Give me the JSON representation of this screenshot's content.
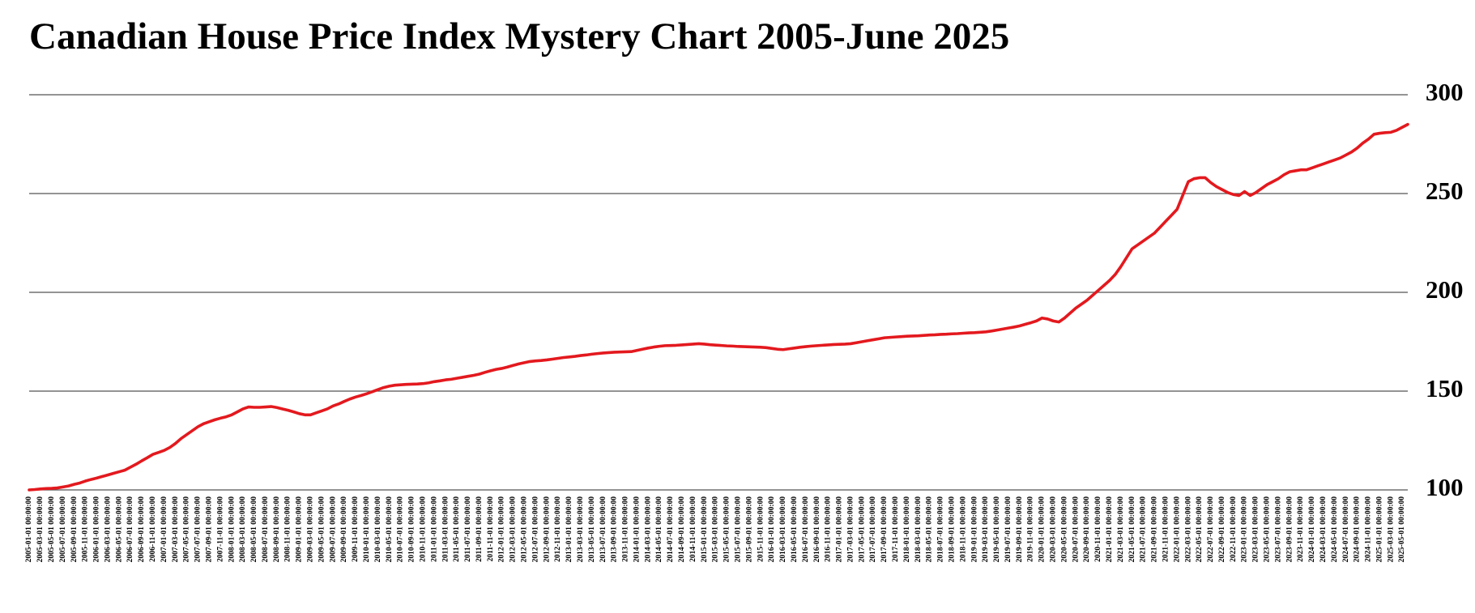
{
  "chart_data": {
    "type": "line",
    "title": "Canadian House Price Index Mystery Chart 2005-June 2025",
    "color": "#e3191e",
    "ylim": [
      100,
      300
    ],
    "yticks": [
      100,
      150,
      200,
      250,
      300
    ],
    "grid": true,
    "categories": [
      "2005-01-01 00:00:00",
      null,
      "2005-03-01 00:00:00",
      null,
      "2005-05-01 00:00:00",
      null,
      "2005-07-01 00:00:00",
      null,
      "2005-09-01 00:00:00",
      null,
      "2005-11-01 00:00:00",
      null,
      "2006-01-01 00:00:00",
      null,
      "2006-03-01 00:00:00",
      null,
      "2006-05-01 00:00:00",
      null,
      "2006-07-01 00:00:00",
      null,
      "2006-09-01 00:00:00",
      null,
      "2006-11-01 00:00:00",
      null,
      "2007-01-01 00:00:00",
      null,
      "2007-03-01 00:00:00",
      null,
      "2007-05-01 00:00:00",
      null,
      "2007-07-01 00:00:00",
      null,
      "2007-09-01 00:00:00",
      null,
      "2007-11-01 00:00:00",
      null,
      "2008-01-01 00:00:00",
      null,
      "2008-03-01 00:00:00",
      null,
      "2008-05-01 00:00:00",
      null,
      "2008-07-01 00:00:00",
      null,
      "2008-09-01 00:00:00",
      null,
      "2008-11-01 00:00:00",
      null,
      "2009-01-01 00:00:00",
      null,
      "2009-03-01 00:00:00",
      null,
      "2009-05-01 00:00:00",
      null,
      "2009-07-01 00:00:00",
      null,
      "2009-09-01 00:00:00",
      null,
      "2009-11-01 00:00:00",
      null,
      "2010-01-01 00:00:00",
      null,
      "2010-03-01 00:00:00",
      null,
      "2010-05-01 00:00:00",
      null,
      "2010-07-01 00:00:00",
      null,
      "2010-09-01 00:00:00",
      null,
      "2010-11-01 00:00:00",
      null,
      "2011-01-01 00:00:00",
      null,
      "2011-03-01 00:00:00",
      null,
      "2011-05-01 00:00:00",
      null,
      "2011-07-01 00:00:00",
      null,
      "2011-09-01 00:00:00",
      null,
      "2011-11-01 00:00:00",
      null,
      "2012-01-01 00:00:00",
      null,
      "2012-03-01 00:00:00",
      null,
      "2012-05-01 00:00:00",
      null,
      "2012-07-01 00:00:00",
      null,
      "2012-09-01 00:00:00",
      null,
      "2012-11-01 00:00:00",
      null,
      "2013-01-01 00:00:00",
      null,
      "2013-03-01 00:00:00",
      null,
      "2013-05-01 00:00:00",
      null,
      "2013-07-01 00:00:00",
      null,
      "2013-09-01 00:00:00",
      null,
      "2013-11-01 00:00:00",
      null,
      "2014-01-01 00:00:00",
      null,
      "2014-03-01 00:00:00",
      null,
      "2014-05-01 00:00:00",
      null,
      "2014-07-01 00:00:00",
      null,
      "2014-09-01 00:00:00",
      null,
      "2014-11-01 00:00:00",
      null,
      "2015-01-01 00:00:00",
      null,
      "2015-03-01 00:00:00",
      null,
      "2015-05-01 00:00:00",
      null,
      "2015-07-01 00:00:00",
      null,
      "2015-09-01 00:00:00",
      null,
      "2015-11-01 00:00:00",
      null,
      "2016-01-01 00:00:00",
      null,
      "2016-03-01 00:00:00",
      null,
      "2016-05-01 00:00:00",
      null,
      "2016-07-01 00:00:00",
      null,
      "2016-09-01 00:00:00",
      null,
      "2016-11-01 00:00:00",
      null,
      "2017-01-01 00:00:00",
      null,
      "2017-03-01 00:00:00",
      null,
      "2017-05-01 00:00:00",
      null,
      "2017-07-01 00:00:00",
      null,
      "2017-09-01 00:00:00",
      null,
      "2017-11-01 00:00:00",
      null,
      "2018-01-01 00:00:00",
      null,
      "2018-03-01 00:00:00",
      null,
      "2018-05-01 00:00:00",
      null,
      "2018-07-01 00:00:00",
      null,
      "2018-09-01 00:00:00",
      null,
      "2018-11-01 00:00:00",
      null,
      "2019-01-01 00:00:00",
      null,
      "2019-03-01 00:00:00",
      null,
      "2019-05-01 00:00:00",
      null,
      "2019-07-01 00:00:00",
      null,
      "2019-09-01 00:00:00",
      null,
      "2019-11-01 00:00:00",
      null,
      "2020-01-01 00:00:00",
      null,
      "2020-03-01 00:00:00",
      null,
      "2020-05-01 00:00:00",
      null,
      "2020-07-01 00:00:00",
      null,
      "2020-09-01 00:00:00",
      null,
      "2020-11-01 00:00:00",
      null,
      "2021-01-01 00:00:00",
      null,
      "2021-03-01 00:00:00",
      null,
      "2021-05-01 00:00:00",
      null,
      "2021-07-01 00:00:00",
      null,
      "2021-09-01 00:00:00",
      null,
      "2021-11-01 00:00:00",
      null,
      "2022-01-01 00:00:00",
      null,
      "2022-03-01 00:00:00",
      null,
      "2022-05-01 00:00:00",
      null,
      "2022-07-01 00:00:00",
      null,
      "2022-09-01 00:00:00",
      null,
      "2022-11-01 00:00:00",
      null,
      "2023-01-01 00:00:00",
      null,
      "2023-03-01 00:00:00",
      null,
      "2023-05-01 00:00:00",
      null,
      "2023-07-01 00:00:00",
      null,
      "2023-09-01 00:00:00",
      null,
      "2023-11-01 00:00:00",
      null,
      "2024-01-01 00:00:00",
      null,
      "2024-03-01 00:00:00",
      null,
      "2024-05-01 00:00:00",
      null,
      "2024-07-01 00:00:00",
      null,
      "2024-09-01 00:00:00",
      null,
      "2024-11-01 00:00:00",
      null,
      "2025-01-01 00:00:00",
      null,
      "2025-03-01 00:00:00",
      null,
      "2025-05-01 00:00:00",
      null
    ],
    "values": [
      100,
      100.2,
      100.5,
      100.7,
      100.8,
      101,
      101.5,
      102,
      102.8,
      103.5,
      104.5,
      105.3,
      106,
      106.8,
      107.6,
      108.4,
      109.2,
      110,
      111.5,
      113,
      114.7,
      116.3,
      118,
      119,
      120,
      121.5,
      123.5,
      126,
      128,
      130,
      132,
      133.5,
      134.5,
      135.5,
      136.3,
      137,
      138,
      139.5,
      141,
      142,
      141.8,
      141.8,
      142,
      142.2,
      141.7,
      141,
      140.3,
      139.5,
      138.6,
      138,
      138,
      139,
      140,
      141,
      142.5,
      143.5,
      144.8,
      146,
      147,
      147.8,
      148.7,
      149.7,
      150.8,
      151.8,
      152.5,
      153,
      153.2,
      153.4,
      153.5,
      153.6,
      153.8,
      154.2,
      154.8,
      155.2,
      155.7,
      156,
      156.5,
      157,
      157.5,
      158,
      158.6,
      159.5,
      160.3,
      161,
      161.5,
      162.2,
      163,
      163.8,
      164.4,
      165,
      165.3,
      165.5,
      165.8,
      166.2,
      166.6,
      167,
      167.3,
      167.6,
      168,
      168.3,
      168.7,
      169,
      169.3,
      169.5,
      169.7,
      169.8,
      169.9,
      170,
      170.6,
      171.2,
      171.8,
      172.3,
      172.7,
      173,
      173.1,
      173.2,
      173.4,
      173.6,
      173.8,
      174,
      173.8,
      173.5,
      173.3,
      173.1,
      172.9,
      172.8,
      172.6,
      172.5,
      172.4,
      172.3,
      172.2,
      172,
      171.6,
      171.2,
      171,
      171.4,
      171.8,
      172.2,
      172.5,
      172.8,
      173,
      173.2,
      173.4,
      173.6,
      173.7,
      173.8,
      174,
      174.5,
      175,
      175.5,
      176,
      176.5,
      177,
      177.2,
      177.4,
      177.6,
      177.8,
      177.9,
      178,
      178.2,
      178.4,
      178.5,
      178.7,
      178.8,
      179,
      179.1,
      179.3,
      179.5,
      179.6,
      179.8,
      180,
      180.4,
      180.9,
      181.4,
      181.9,
      182.4,
      183,
      183.8,
      184.6,
      185.5,
      187,
      186.5,
      185.5,
      185,
      187,
      189.5,
      192,
      194,
      196,
      198.5,
      201,
      203.5,
      206,
      209,
      213,
      217.5,
      222,
      224,
      226,
      228,
      230,
      233,
      236,
      239,
      242,
      249,
      256,
      257.5,
      258,
      258,
      255.5,
      253.5,
      252,
      250.5,
      249.5,
      249,
      251,
      249,
      250.5,
      252.5,
      254.5,
      256,
      257.5,
      259.5,
      261,
      261.5,
      262,
      262,
      263,
      264,
      265,
      266,
      267,
      268,
      269.5,
      271,
      273,
      275.5,
      277.5,
      280,
      280.5,
      280.8,
      281,
      282,
      283.5,
      285
    ]
  }
}
